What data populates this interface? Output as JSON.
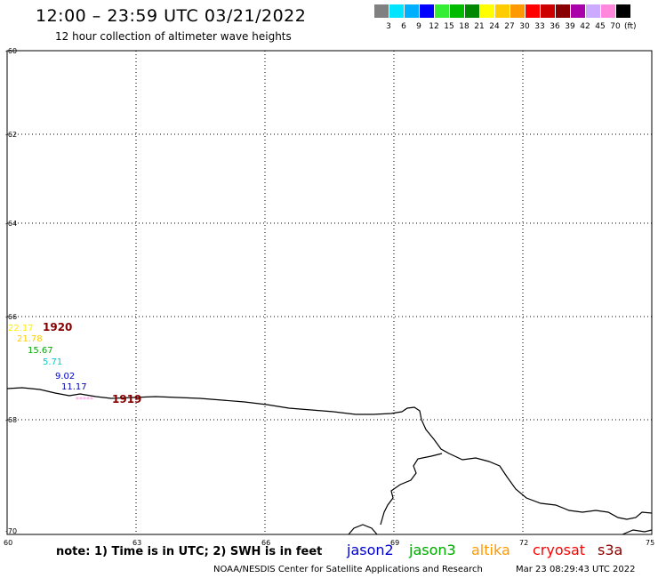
{
  "header": {
    "title": "12:00 – 23:59 UTC 03/21/2022",
    "subtitle": "12 hour collection of altimeter wave heights"
  },
  "colorbar": {
    "colors": [
      "#808080",
      "#00e5ff",
      "#00b0ff",
      "#0000ff",
      "#33ee33",
      "#00bb00",
      "#008800",
      "#ffff00",
      "#ffcc00",
      "#ff9900",
      "#ff0000",
      "#cc0000",
      "#880000",
      "#aa00aa",
      "#ccaaff",
      "#ff88dd",
      "#000000"
    ],
    "labels": [
      "3",
      "6",
      "9",
      "12",
      "15",
      "18",
      "21",
      "24",
      "27",
      "30",
      "33",
      "36",
      "39",
      "42",
      "45",
      "70"
    ],
    "unit": "(ft)"
  },
  "map": {
    "lat_labels": [
      "-60",
      "-62",
      "-64",
      "-66",
      "-68",
      "-70"
    ],
    "lon_labels": [
      "60",
      "63",
      "66",
      "69",
      "72",
      "75"
    ],
    "track_labels": [
      {
        "text": "22.17",
        "color": "#ffff00"
      },
      {
        "text": "21.78",
        "color": "#ffcc00"
      },
      {
        "text": "15.67",
        "color": "#00aa00"
      },
      {
        "text": "5.71",
        "color": "#00cccc"
      },
      {
        "text": "9.02",
        "color": "#0000cc"
      },
      {
        "text": "11.17",
        "color": "#0000aa"
      },
      {
        "text": "1920",
        "color": "#880000"
      },
      {
        "text": "1919",
        "color": "#880000"
      },
      {
        "text": "*****",
        "color": "#ff88dd"
      }
    ]
  },
  "footer": {
    "note": "note: 1) Time is in UTC; 2) SWH is in feet",
    "missions": [
      {
        "name": "jason2",
        "color": "#0000cc"
      },
      {
        "name": "jason3",
        "color": "#00aa00"
      },
      {
        "name": "altika",
        "color": "#ff9900"
      },
      {
        "name": "cryosat",
        "color": "#ff0000"
      },
      {
        "name": "s3a",
        "color": "#880000"
      }
    ],
    "credit": "NOAA/NESDIS Center for Satellite Applications and Research",
    "timestamp": "Mar 23 08:29:43 UTC 2022"
  }
}
